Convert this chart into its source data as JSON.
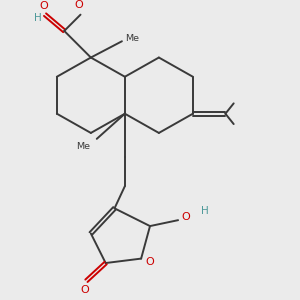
{
  "bg_color": "#ebebeb",
  "bond_color": "#3a3a3a",
  "oxygen_color": "#cc0000",
  "teal_color": "#4d9999",
  "bond_width": 1.4,
  "dbo": 0.055,
  "xlim": [
    0,
    10
  ],
  "ylim": [
    0,
    10
  ]
}
